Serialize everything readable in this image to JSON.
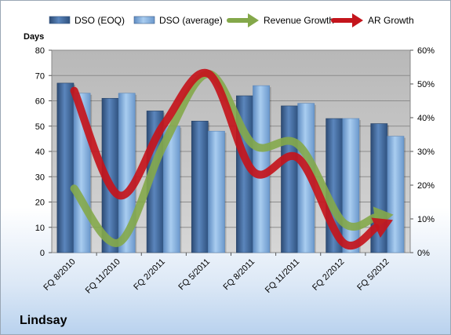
{
  "company_name": "Lindsay",
  "colors": {
    "dso_eoq": "#3c6396",
    "dso_avg": "#7aa6d6",
    "revenue_growth": "#84a84a",
    "ar_growth": "#c4151c",
    "plot_bg": "#c0c0c0"
  },
  "chart_data": {
    "type": "bar",
    "categories": [
      "FQ 8/2010",
      "FQ 11/2010",
      "FQ 2/2011",
      "FQ 5/2011",
      "FQ 8/2011",
      "FQ 11/2011",
      "FQ 2/2012",
      "FQ 5/2012"
    ],
    "series": [
      {
        "name": "DSO (EOQ)",
        "type": "bar",
        "axis": "left",
        "values": [
          67,
          61,
          56,
          52,
          62,
          58,
          53,
          51
        ]
      },
      {
        "name": "DSO (average)",
        "type": "bar",
        "axis": "left",
        "values": [
          63,
          63,
          50,
          48,
          66,
          59,
          53,
          46
        ]
      },
      {
        "name": "Revenue Growth",
        "type": "line",
        "axis": "right",
        "values": [
          0.19,
          0.03,
          0.32,
          0.53,
          0.32,
          0.32,
          0.09,
          0.11
        ]
      },
      {
        "name": "AR Growth",
        "type": "line",
        "axis": "right",
        "values": [
          0.48,
          0.17,
          0.38,
          0.53,
          0.24,
          0.28,
          0.03,
          0.09
        ]
      }
    ],
    "ylabel": "Days",
    "ylim": [
      0,
      80
    ],
    "yticks": [
      "0",
      "10",
      "20",
      "30",
      "40",
      "50",
      "60",
      "70",
      "80"
    ],
    "y2lim": [
      0,
      0.6
    ],
    "y2ticks": [
      "0%",
      "10%",
      "20%",
      "30%",
      "40%",
      "50%",
      "60%"
    ],
    "legend_placement": "top",
    "grid": true
  }
}
